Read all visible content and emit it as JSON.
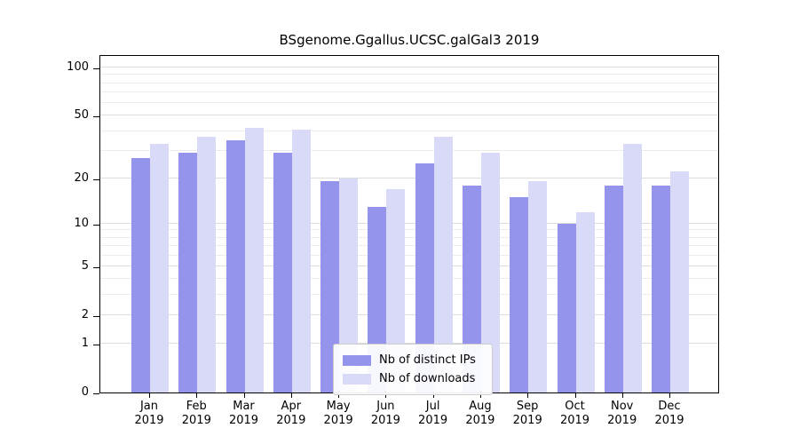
{
  "figure": {
    "background": "#ffffff"
  },
  "chart_data": {
    "type": "bar",
    "title": "BSgenome.Ggallus.UCSC.galGal3 2019",
    "xlabel": "",
    "ylabel": "",
    "categories": [
      "Jan",
      "Feb",
      "Mar",
      "Apr",
      "May",
      "Jun",
      "Jul",
      "Aug",
      "Sep",
      "Oct",
      "Nov",
      "Dec"
    ],
    "year_label": "2019",
    "series": [
      {
        "name": "Nb of distinct IPs",
        "color": "#9494ec",
        "values": [
          27,
          29,
          35,
          29,
          19,
          13,
          25,
          18,
          15,
          10,
          18,
          18
        ]
      },
      {
        "name": "Nb of downloads",
        "color": "#d9d9f8",
        "values": [
          33,
          37,
          42,
          41,
          20,
          17,
          37,
          29,
          19,
          12,
          33,
          22
        ]
      }
    ],
    "yscale": "log1p",
    "yticks": [
      0,
      1,
      2,
      5,
      10,
      20,
      50,
      100
    ],
    "minor_gridlines": [
      3,
      4,
      6,
      7,
      8,
      9,
      30,
      40,
      60,
      70,
      80,
      90
    ],
    "ylim": [
      0,
      121
    ],
    "grid": true,
    "legend_position": "lower center"
  }
}
